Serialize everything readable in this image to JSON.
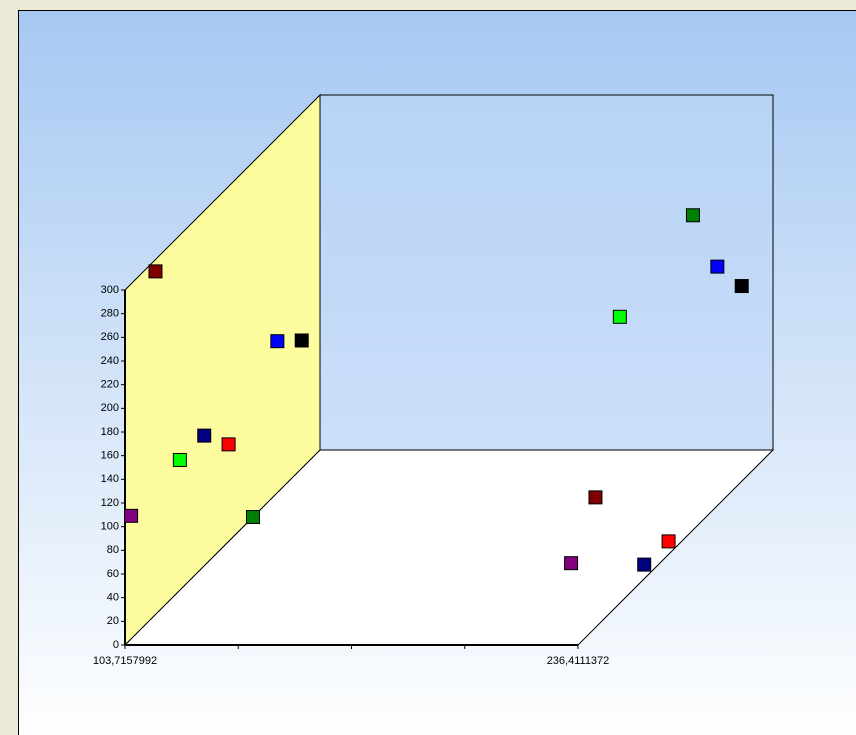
{
  "chart_data": {
    "type": "scatter3d",
    "xlim": [
      103.7157992,
      236.4111372
    ],
    "xticks": [
      {
        "value": 103.7157992,
        "label": "103,7157992"
      },
      {
        "value": 236.4111372,
        "label": "236,4111372"
      }
    ],
    "ylim": [
      0,
      300
    ],
    "yticks": [
      0,
      20,
      40,
      60,
      80,
      100,
      120,
      140,
      160,
      180,
      200,
      220,
      240,
      260,
      280,
      300
    ],
    "series": [
      {
        "color": "#800080",
        "x": [
          103.7157992,
          232.6
        ],
        "values": [
          104,
          64
        ]
      },
      {
        "color": "#800000",
        "x": [
          103.7157992,
          232.6
        ],
        "values": [
          290,
          99
        ]
      },
      {
        "color": "#00ff00",
        "x": [
          103.7157992,
          232.6
        ],
        "values": [
          110,
          231
        ]
      },
      {
        "color": "#000080",
        "x": [
          103.7157992,
          232.6
        ],
        "values": [
          110,
          1
        ]
      },
      {
        "color": "#ff0000",
        "x": [
          103.7157992,
          232.6
        ],
        "values": [
          82,
          0
        ]
      },
      {
        "color": "#008000",
        "x": [
          103.7157992,
          232.6
        ],
        "values": [
          0,
          255
        ]
      },
      {
        "color": "#0000ff",
        "x": [
          103.7157992,
          232.6
        ],
        "values": [
          128,
          191
        ]
      },
      {
        "color": "#000000",
        "x": [
          103.7157992,
          232.6
        ],
        "values": [
          108,
          154
        ]
      }
    ]
  }
}
